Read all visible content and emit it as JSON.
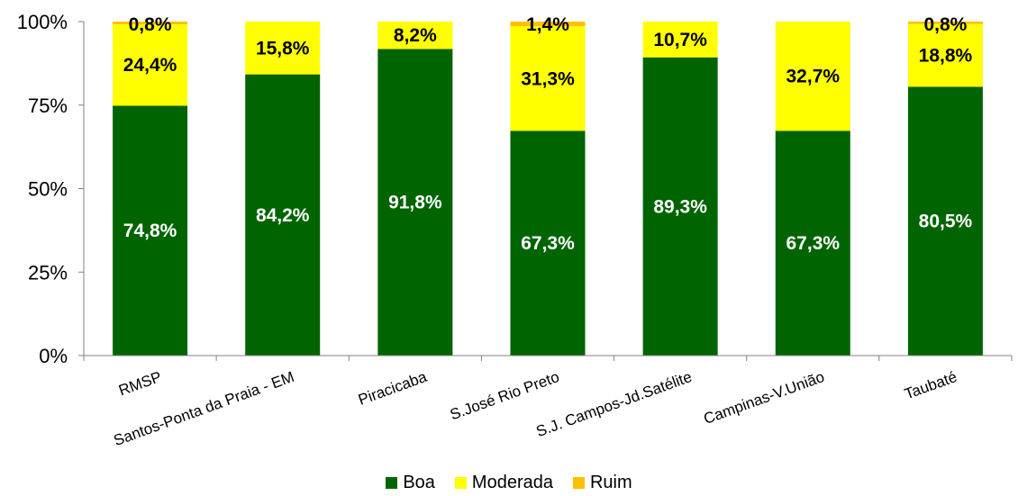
{
  "colors": {
    "Boa": "#006400",
    "Moderada": "#FFFF00",
    "Ruim": "#FFC000"
  },
  "chart_data": {
    "type": "bar",
    "stacked": true,
    "categories": [
      "RMSP",
      "Santos-Ponta da Praia - EM",
      "Piracicaba",
      "S.José Rio Preto",
      "S.J. Campos-Jd.Satélite",
      "Campinas-V.União",
      "Taubaté"
    ],
    "series": [
      {
        "name": "Boa",
        "values": [
          74.8,
          84.2,
          91.8,
          67.3,
          89.3,
          67.3,
          80.5
        ],
        "labels": [
          "74,8%",
          "84,2%",
          "91,8%",
          "67,3%",
          "89,3%",
          "67,3%",
          "80,5%"
        ]
      },
      {
        "name": "Moderada",
        "values": [
          24.4,
          15.8,
          8.2,
          31.3,
          10.7,
          32.7,
          18.8
        ],
        "labels": [
          "24,4%",
          "15,8%",
          "8,2%",
          "31,3%",
          "10,7%",
          "32,7%",
          "18,8%"
        ]
      },
      {
        "name": "Ruim",
        "values": [
          0.8,
          0,
          0,
          1.4,
          0,
          0,
          0.8
        ],
        "labels": [
          "0,8%",
          "",
          "",
          "1,4%",
          "",
          "",
          "0,8%"
        ]
      }
    ],
    "yticks": [
      "0%",
      "25%",
      "50%",
      "75%",
      "100%"
    ],
    "ylim": [
      0,
      100
    ],
    "legend_position": "bottom",
    "grid": false
  }
}
